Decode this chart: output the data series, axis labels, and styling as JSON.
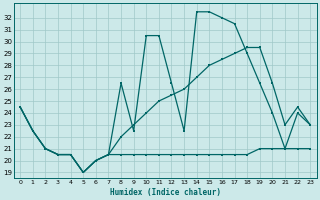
{
  "xlabel": "Humidex (Indice chaleur)",
  "background_color": "#cce9e9",
  "grid_color": "#a0c8c8",
  "line_color": "#006666",
  "xlim": [
    -0.5,
    23.5
  ],
  "ymin": 18.5,
  "ymax": 33.2,
  "yticks": [
    19,
    20,
    21,
    22,
    23,
    24,
    25,
    26,
    27,
    28,
    29,
    30,
    31,
    32
  ],
  "xticks": [
    0,
    1,
    2,
    3,
    4,
    5,
    6,
    7,
    8,
    9,
    10,
    11,
    12,
    13,
    14,
    15,
    16,
    17,
    18,
    19,
    20,
    21,
    22,
    23
  ],
  "line1_x": [
    0,
    1,
    2,
    3,
    4,
    5,
    6,
    7,
    8,
    9,
    10,
    11,
    12,
    13,
    14,
    15,
    16,
    17,
    18,
    19,
    20,
    21,
    22,
    23
  ],
  "line1_y": [
    24.5,
    22.5,
    21.0,
    20.5,
    20.5,
    19.0,
    20.0,
    20.5,
    26.5,
    22.5,
    30.5,
    30.5,
    26.5,
    22.5,
    32.5,
    32.5,
    32.0,
    31.5,
    29.0,
    26.5,
    24.0,
    21.0,
    24.0,
    23.0
  ],
  "line2_x": [
    0,
    1,
    2,
    3,
    4,
    5,
    6,
    7,
    8,
    9,
    10,
    11,
    12,
    13,
    14,
    15,
    16,
    17,
    18,
    19,
    20,
    21,
    22,
    23
  ],
  "line2_y": [
    24.5,
    22.5,
    21.0,
    20.5,
    20.5,
    19.0,
    20.0,
    20.5,
    20.5,
    20.5,
    20.5,
    20.5,
    20.5,
    20.5,
    20.5,
    20.5,
    20.5,
    20.5,
    20.5,
    21.0,
    21.0,
    21.0,
    21.0,
    21.0
  ],
  "line3_x": [
    0,
    1,
    2,
    3,
    4,
    5,
    6,
    7,
    8,
    9,
    10,
    11,
    12,
    13,
    14,
    15,
    16,
    17,
    18,
    19,
    20,
    21,
    22,
    23
  ],
  "line3_y": [
    24.5,
    22.5,
    21.0,
    20.5,
    20.5,
    19.0,
    20.0,
    20.5,
    22.0,
    23.0,
    24.0,
    25.0,
    25.5,
    26.0,
    27.0,
    28.0,
    28.5,
    29.0,
    29.5,
    29.5,
    26.5,
    23.0,
    24.5,
    23.0
  ]
}
